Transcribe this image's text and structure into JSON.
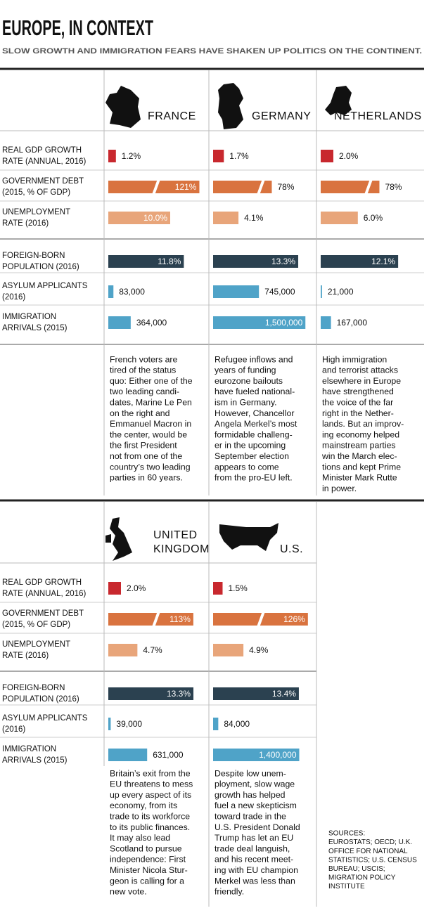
{
  "header": {
    "title": "EUROPE, IN CONTEXT",
    "subtitle": "SLOW GROWTH AND IMMIGRATION FEARS HAVE SHAKEN UP POLITICS ON THE CONTINENT."
  },
  "metrics": [
    {
      "label": [
        "REAL GDP GROWTH",
        "RATE (ANNUAL, 2016)"
      ]
    },
    {
      "label": [
        "GOVERNMENT DEBT",
        "(2015, % OF GDP)"
      ]
    },
    {
      "label": [
        "UNEMPLOYMENT",
        "RATE (2016)"
      ]
    },
    {
      "label": [
        "FOREIGN-BORN",
        "POPULATION (2016)"
      ]
    },
    {
      "label": [
        "ASYLUM APPLICANTS",
        "(2016)"
      ]
    },
    {
      "label": [
        "IMMIGRATION",
        "ARRIVALS (2015)"
      ]
    }
  ],
  "countries": [
    {
      "name": [
        "FRANCE"
      ],
      "values": [
        1.2,
        121,
        10.0,
        11.8,
        83000,
        364000
      ],
      "value_labels": [
        "1.2%",
        "121%",
        "10.0%",
        "11.8%",
        "83,000",
        "364,000"
      ],
      "note": [
        "French voters are",
        "tired of the status",
        "quo: Either one of the",
        "two leading candi-",
        "dates, Marine Le Pen",
        "on the right and",
        "Emmanuel Macron in",
        "the center, would be",
        "the first President",
        "not from one of the",
        "country’s two leading",
        "parties in 60 years."
      ]
    },
    {
      "name": [
        "GERMANY"
      ],
      "values": [
        1.7,
        78,
        4.1,
        13.3,
        745000,
        1500000
      ],
      "value_labels": [
        "1.7%",
        "78%",
        "4.1%",
        "13.3%",
        "745,000",
        "1,500,000"
      ],
      "note": [
        "Refugee inflows and",
        "years of funding",
        "eurozone bailouts",
        "have fueled national-",
        "ism in Germany.",
        "However, Chancellor",
        "Angela Merkel’s most",
        "formidable challeng-",
        "er in the upcoming",
        "September election",
        "appears to come",
        "from the pro-EU left."
      ]
    },
    {
      "name": [
        "NETHERLANDS"
      ],
      "values": [
        2.0,
        78,
        6.0,
        12.1,
        21000,
        167000
      ],
      "value_labels": [
        "2.0%",
        "78%",
        "6.0%",
        "12.1%",
        "21,000",
        "167,000"
      ],
      "note": [
        "High immigration",
        "and terrorist attacks",
        "elsewhere in Europe",
        "have strengthened",
        "the voice of the far",
        "right in the Nether-",
        "lands. But an improv-",
        "ing economy helped",
        "mainstream parties",
        "win the March elec-",
        "tions and kept Prime",
        "Minister Mark Rutte",
        "in power."
      ]
    },
    {
      "name": [
        "UNITED",
        "KINGDOM"
      ],
      "values": [
        2.0,
        113,
        4.7,
        13.3,
        39000,
        631000
      ],
      "value_labels": [
        "2.0%",
        "113%",
        "4.7%",
        "13.3%",
        "39,000",
        "631,000"
      ],
      "note": [
        "Britain’s exit from the",
        "EU threatens to mess",
        "up every aspect of its",
        "economy, from its",
        "trade to its workforce",
        "to its public finances.",
        "It may also lead",
        "Scotland to pursue",
        "independence: First",
        "Minister Nicola Stur-",
        "geon is calling for a",
        "new vote."
      ]
    },
    {
      "name": [
        "U.S."
      ],
      "values": [
        1.5,
        126,
        4.9,
        13.4,
        84000,
        1400000
      ],
      "value_labels": [
        "1.5%",
        "126%",
        "4.9%",
        "13.4%",
        "84,000",
        "1,400,000"
      ],
      "note": [
        "Despite low unem-",
        "ployment, slow wage",
        "growth has helped",
        "fuel a new skepticism",
        "toward trade in the",
        "U.S. President Donald",
        "Trump has let an EU",
        "trade deal languish,",
        "and his recent meet-",
        "ing with EU champion",
        "Merkel was less than",
        "friendly."
      ]
    }
  ],
  "sources": [
    "SOURCES:",
    "EUROSTATS; OECD; U.K.",
    "OFFICE FOR NATIONAL",
    "STATISTICS; U.S. CENSUS",
    "BUREAU; USCIS;",
    "MIGRATION POLICY",
    "INSTITUTE"
  ]
}
